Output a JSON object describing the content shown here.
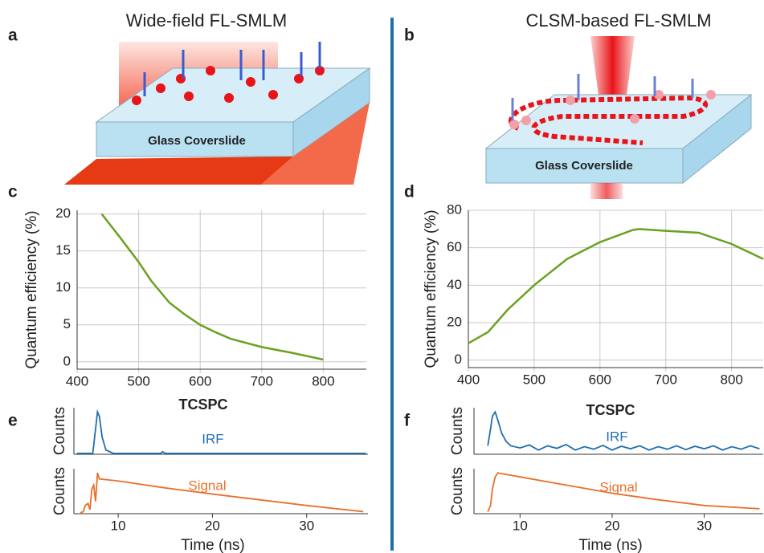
{
  "panels": {
    "a": {
      "label": "a",
      "title": "Wide-field FL-SMLM",
      "slide": "Glass Coverslide"
    },
    "b": {
      "label": "b",
      "title": "CLSM-based FL-SMLM",
      "slide": "Glass Coverslide"
    }
  },
  "chart_data": [
    {
      "type": "line",
      "label": "c",
      "ylabel": "Quantum efficiency (%)",
      "grid": true,
      "x": [
        440,
        470,
        500,
        520,
        550,
        575,
        600,
        625,
        650,
        700,
        750,
        800
      ],
      "series": [
        {
          "color": "#6aa121",
          "values": [
            20,
            16.8,
            13.5,
            11,
            8,
            6.4,
            5,
            4,
            3.1,
            2,
            1.2,
            0.3
          ]
        }
      ],
      "xlim": [
        400,
        870
      ],
      "ylim": [
        -1,
        20.5
      ],
      "xticks": [
        400,
        500,
        600,
        700,
        800
      ],
      "yticks": [
        0,
        5,
        10,
        15,
        20
      ]
    },
    {
      "type": "line",
      "label": "d",
      "ylabel": "Quantum efficiency (%)",
      "grid": true,
      "x": [
        400,
        430,
        460,
        500,
        550,
        600,
        650,
        660,
        700,
        750,
        800,
        848
      ],
      "series": [
        {
          "color": "#6aa121",
          "values": [
            9,
            15,
            27,
            40,
            54,
            63,
            69.5,
            70,
            69,
            68,
            62,
            54
          ]
        }
      ],
      "xlim": [
        400,
        848
      ],
      "ylim": [
        -4,
        80
      ],
      "xticks": [
        400,
        500,
        600,
        700,
        800
      ],
      "yticks": [
        0,
        20,
        40,
        60,
        80
      ]
    },
    {
      "type": "line",
      "label": "e",
      "title": "TCSPC",
      "ylabel": "Counts",
      "x": [
        5.6,
        7.3,
        7.6,
        7.8,
        8.0,
        8.3,
        8.7,
        9.5,
        14.5,
        14.7,
        15,
        36.3
      ],
      "series": [
        {
          "name": "IRF",
          "color": "#1f6fb0",
          "values": [
            0.02,
            0.02,
            0.6,
            1,
            0.9,
            0.4,
            0.1,
            0.02,
            0.02,
            0.06,
            0.02,
            0.02
          ]
        }
      ],
      "xlim": [
        5.3,
        36.5
      ],
      "ylim": [
        0,
        1.1
      ]
    },
    {
      "type": "line",
      "ylabel": "Counts",
      "xlabel": "Time (ns)",
      "x": [
        6.0,
        6.3,
        6.5,
        6.8,
        7.0,
        7.2,
        7.4,
        7.6,
        7.8,
        8.0,
        10,
        15,
        20,
        25,
        30,
        36
      ],
      "series": [
        {
          "name": "Signal",
          "color": "#e8702a",
          "values": [
            0.02,
            0.05,
            0.2,
            0.25,
            0.1,
            0.6,
            0.7,
            0.3,
            1.0,
            0.85,
            0.8,
            0.63,
            0.48,
            0.34,
            0.2,
            0.05
          ]
        }
      ],
      "xlim": [
        5.3,
        36.5
      ],
      "ylim": [
        0,
        1.1
      ],
      "xticks": [
        10,
        20,
        30
      ]
    },
    {
      "type": "line",
      "label": "f",
      "title": "TCSPC",
      "ylabel": "Counts",
      "x": [
        6.5,
        6.8,
        7.0,
        7.3,
        7.6,
        8.0,
        8.5,
        9,
        10,
        11,
        12,
        13,
        14,
        15,
        16,
        17,
        18,
        19,
        20,
        21,
        22,
        23,
        24,
        25,
        26,
        27,
        28,
        29,
        30,
        31,
        32,
        33,
        34,
        35,
        36
      ],
      "series": [
        {
          "name": "IRF",
          "color": "#1f6fb0",
          "values": [
            0.2,
            0.6,
            0.9,
            1.0,
            0.8,
            0.5,
            0.3,
            0.2,
            0.15,
            0.22,
            0.1,
            0.2,
            0.14,
            0.23,
            0.1,
            0.18,
            0.12,
            0.21,
            0.1,
            0.19,
            0.13,
            0.2,
            0.1,
            0.18,
            0.12,
            0.2,
            0.11,
            0.19,
            0.13,
            0.2,
            0.1,
            0.18,
            0.12,
            0.2,
            0.13
          ]
        }
      ],
      "xlim": [
        5.0,
        36.4
      ],
      "ylim": [
        0,
        1.1
      ]
    },
    {
      "type": "line",
      "ylabel": "Counts",
      "xlabel": "Time (ns)",
      "x": [
        6.5,
        6.8,
        7.0,
        7.3,
        7.6,
        8,
        10,
        15,
        20,
        25,
        30,
        36
      ],
      "series": [
        {
          "name": "Signal",
          "color": "#e8702a",
          "values": [
            0.05,
            0.2,
            0.6,
            0.9,
            1.0,
            0.98,
            0.9,
            0.7,
            0.5,
            0.34,
            0.2,
            0.12
          ]
        }
      ],
      "xlim": [
        5.0,
        36.4
      ],
      "ylim": [
        0,
        1.1
      ],
      "xticks": [
        10,
        20,
        30
      ]
    }
  ]
}
